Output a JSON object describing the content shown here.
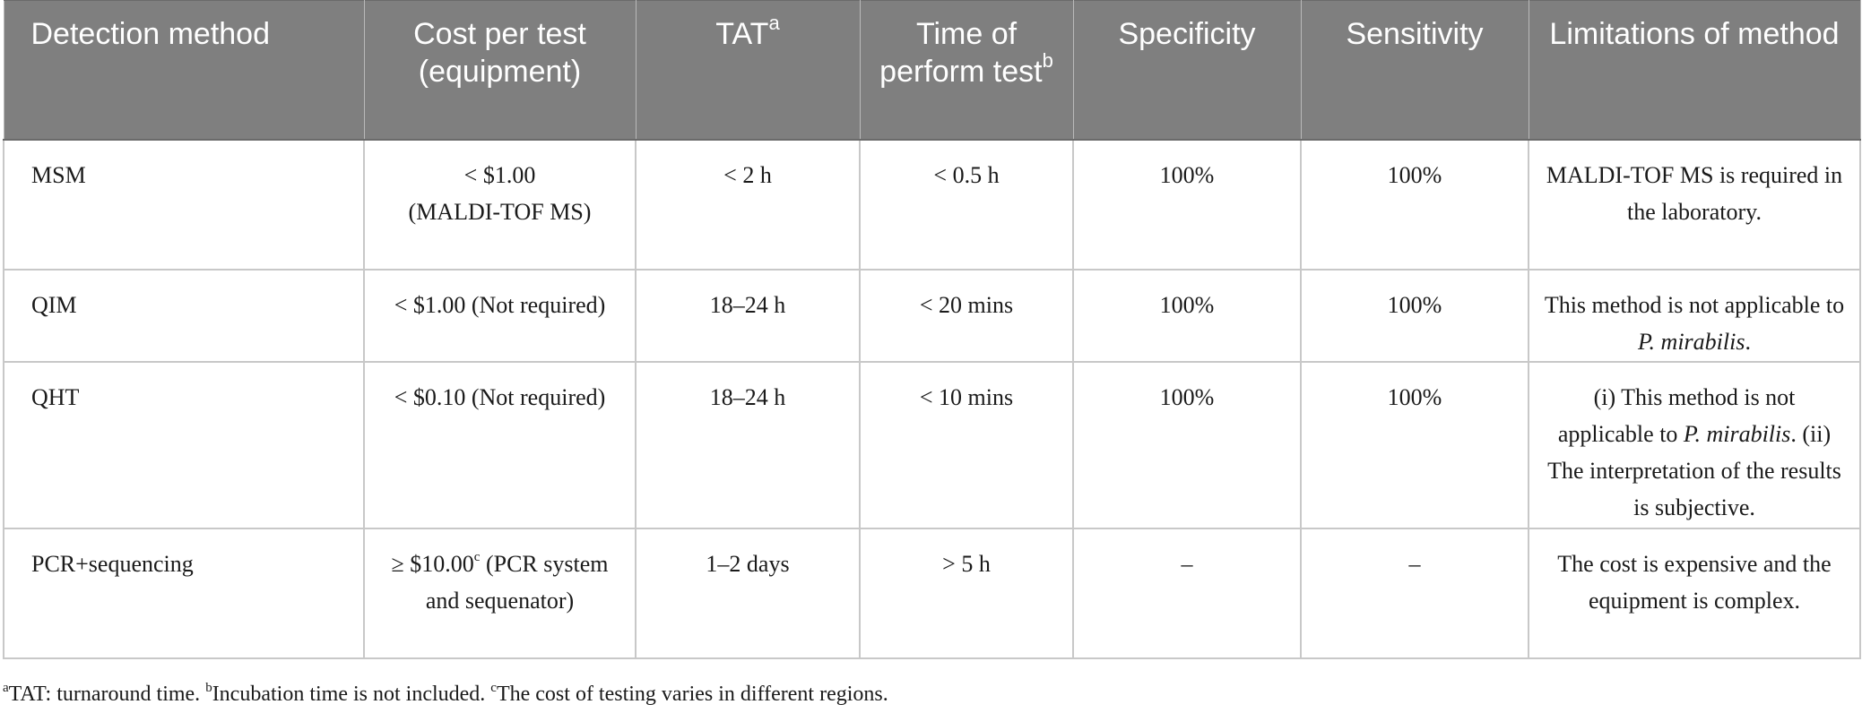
{
  "table": {
    "headers": [
      {
        "text": "Detection method",
        "sup": ""
      },
      {
        "text": "Cost per test (equipment)",
        "sup": ""
      },
      {
        "text": "TAT",
        "sup": "a"
      },
      {
        "text": "Time of perform test",
        "sup": "b"
      },
      {
        "text": "Specificity",
        "sup": ""
      },
      {
        "text": "Sensitivity",
        "sup": ""
      },
      {
        "text": "Limitations of method",
        "sup": ""
      }
    ],
    "rows": [
      {
        "method": "MSM",
        "cost_value": "< $1.00",
        "cost_sup": "",
        "cost_equipment": "(MALDI-TOF MS)",
        "tat": "< 2 h",
        "time": "< 0.5 h",
        "specificity": "100%",
        "sensitivity": "100%",
        "limitation": "MALDI-TOF MS is required in the laboratory."
      },
      {
        "method": "QIM",
        "cost_value": "< $1.00",
        "cost_sup": "",
        "cost_equipment": "(Not required)",
        "tat": "18–24 h",
        "time": "< 20 mins",
        "specificity": "100%",
        "sensitivity": "100%",
        "limitation_pre": "This method is not applicable to ",
        "limitation_em": "P. mirabilis",
        "limitation_post": "."
      },
      {
        "method": "QHT",
        "cost_value": "< $0.10",
        "cost_sup": "",
        "cost_equipment": "(Not required)",
        "tat": "18–24 h",
        "time": "< 10 mins",
        "specificity": "100%",
        "sensitivity": "100%",
        "limitation_pre": "(i) This method is not applicable to ",
        "limitation_em": "P. mirabilis",
        "limitation_post": ". (ii) The interpretation of the results is subjective."
      },
      {
        "method": "PCR+sequencing",
        "cost_value": "≥ $10.00",
        "cost_sup": "c",
        "cost_equipment": "(PCR system and sequenator)",
        "tat": "1–2 days",
        "time": "> 5 h",
        "specificity": "–",
        "sensitivity": "–",
        "limitation": "The cost is expensive and the equipment is complex."
      }
    ]
  },
  "footnotes": {
    "a_mark": "a",
    "a_text": "TAT: turnaround time. ",
    "b_mark": "b",
    "b_text": "Incubation time is not included. ",
    "c_mark": "c",
    "c_text": "The cost of testing varies in different regions."
  }
}
